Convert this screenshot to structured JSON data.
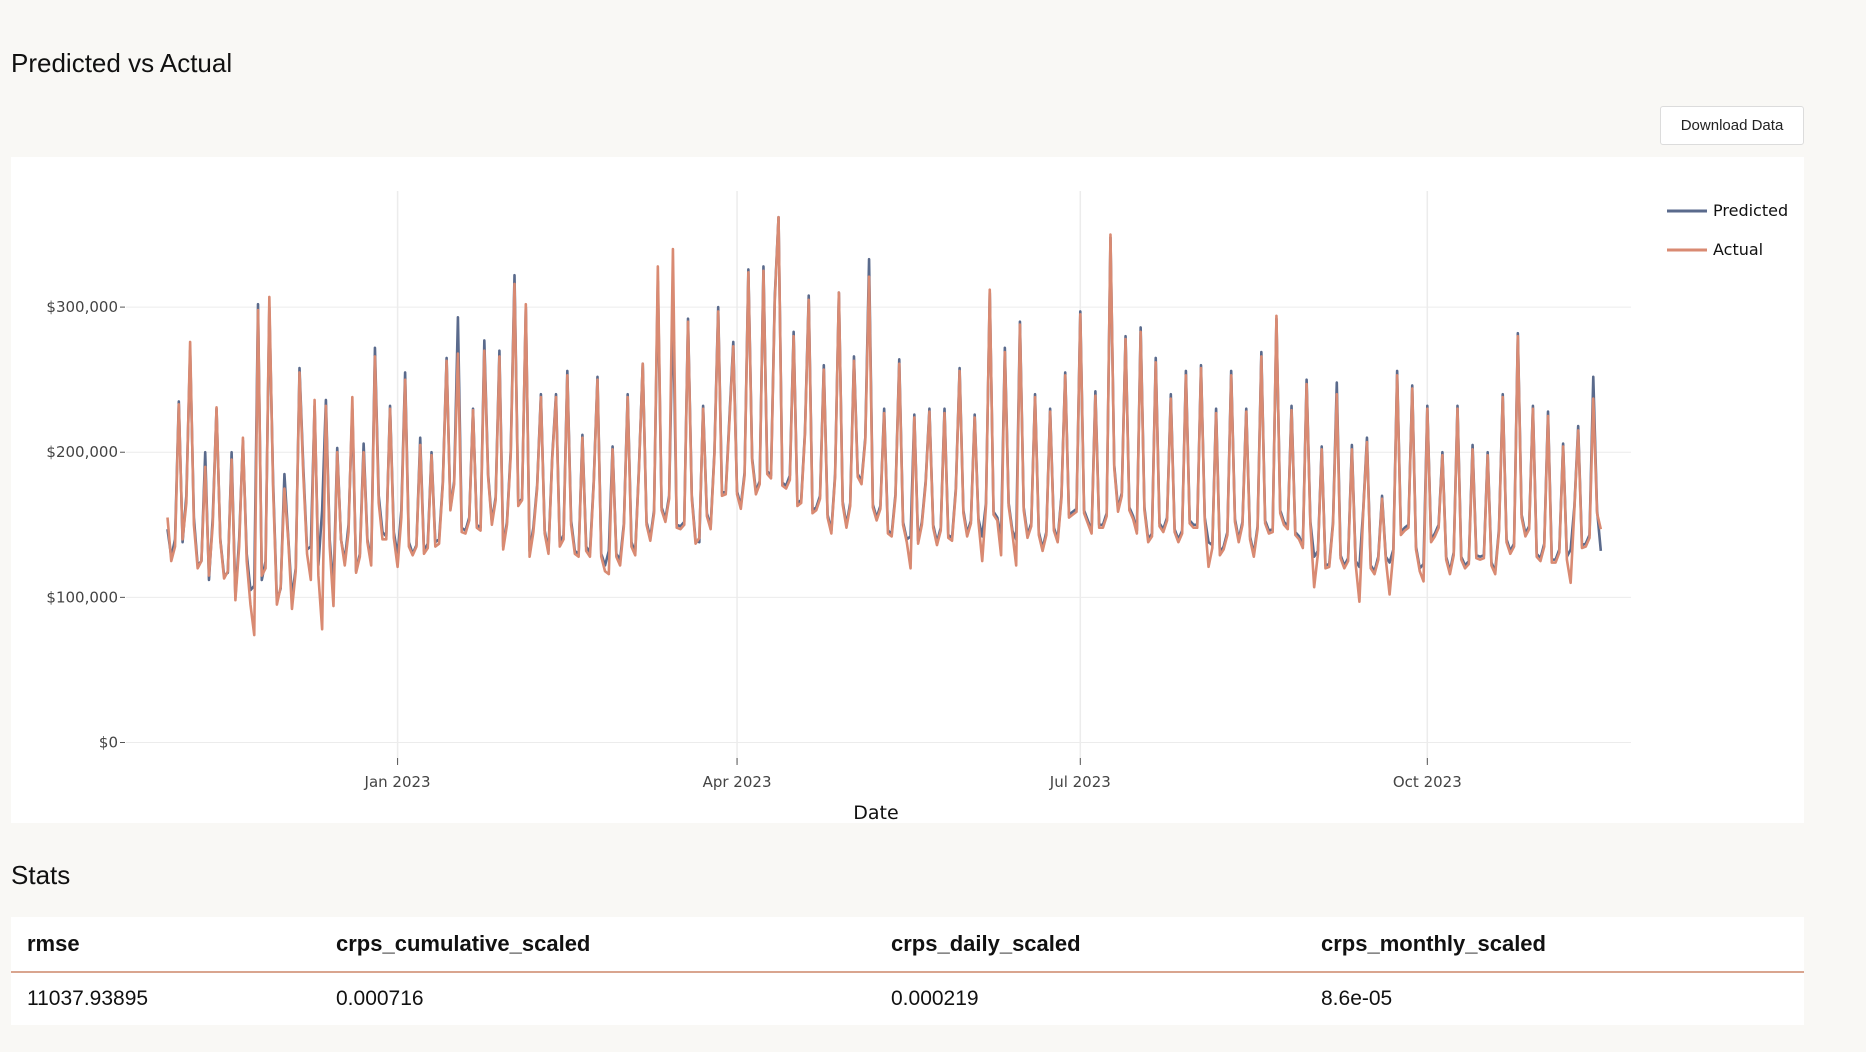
{
  "page": {
    "chart_title": "Predicted vs Actual",
    "download_label": "Download Data",
    "stats_title": "Stats"
  },
  "stats": {
    "columns": [
      "rmse",
      "crps_cumulative_scaled",
      "crps_daily_scaled",
      "crps_monthly_scaled"
    ],
    "values": [
      "11037.93895",
      "0.000716",
      "0.000219",
      "8.6e-05"
    ]
  },
  "colors": {
    "predicted": "#5a6a8c",
    "actual": "#d98a72",
    "grid": "#ececec"
  },
  "chart_data": {
    "type": "line",
    "title": "",
    "xlabel": "Date",
    "ylabel": "",
    "x_range": [
      "2022-11-01",
      "2023-10-31"
    ],
    "xlim": [
      "2022-10-21",
      "2023-11-24"
    ],
    "ylim": [
      -10000,
      380000
    ],
    "yticks": [
      0,
      100000,
      200000,
      300000
    ],
    "ytick_labels": [
      "$0",
      "$100,000",
      "$200,000",
      "$300,000"
    ],
    "xticks": [
      "2023-01-01",
      "2023-04-01",
      "2023-07-01",
      "2023-10-01"
    ],
    "xtick_labels": [
      "Jan 2023",
      "Apr 2023",
      "Jul 2023",
      "Oct 2023"
    ],
    "grid": true,
    "legend_position": "top-right",
    "series": [
      {
        "name": "Predicted",
        "values": [
          147000,
          128000,
          140000,
          235000,
          138000,
          170000,
          270000,
          155000,
          122000,
          125000,
          200000,
          112000,
          155000,
          230000,
          140000,
          115000,
          117000,
          200000,
          100000,
          140000,
          208000,
          130000,
          105000,
          108000,
          302000,
          112000,
          125000,
          300000,
          180000,
          98000,
          106000,
          185000,
          142000,
          100000,
          120000,
          258000,
          190000,
          133000,
          135000,
          232000,
          122000,
          160000,
          236000,
          140000,
          105000,
          203000,
          140000,
          125000,
          150000,
          230000,
          118000,
          130000,
          206000,
          140000,
          125000,
          272000,
          170000,
          145000,
          142000,
          232000,
          145000,
          129000,
          160000,
          255000,
          138000,
          130000,
          136000,
          210000,
          132000,
          137000,
          200000,
          138000,
          140000,
          180000,
          265000,
          161000,
          180000,
          293000,
          148000,
          146000,
          155000,
          230000,
          150000,
          148000,
          277000,
          185000,
          152000,
          169000,
          270000,
          135000,
          152000,
          201000,
          322000,
          165000,
          168000,
          300000,
          132000,
          148000,
          177000,
          240000,
          146000,
          132000,
          197000,
          240000,
          138000,
          143000,
          256000,
          153000,
          132000,
          130000,
          212000,
          135000,
          131000,
          180000,
          252000,
          130000,
          122000,
          132000,
          204000,
          130000,
          126000,
          151000,
          240000,
          138000,
          131000,
          190000,
          261000,
          152000,
          141000,
          160000,
          318000,
          162000,
          154000,
          170000,
          303000,
          150000,
          149000,
          152000,
          292000,
          170000,
          139000,
          138000,
          232000,
          158000,
          149000,
          200000,
          300000,
          172000,
          173000,
          225000,
          276000,
          173000,
          163000,
          186000,
          326000,
          196000,
          173000,
          180000,
          328000,
          187000,
          184000,
          307000,
          362000,
          179000,
          177000,
          184000,
          283000,
          165000,
          167000,
          214000,
          308000,
          160000,
          162000,
          170000,
          260000,
          157000,
          146000,
          185000,
          310000,
          166000,
          150000,
          165000,
          266000,
          185000,
          180000,
          210000,
          333000,
          164000,
          155000,
          163000,
          230000,
          146000,
          144000,
          171000,
          264000,
          152000,
          140000,
          142000,
          226000,
          139000,
          152000,
          180000,
          230000,
          150000,
          138000,
          148000,
          230000,
          143000,
          141000,
          175000,
          258000,
          160000,
          144000,
          153000,
          226000,
          154000,
          142000,
          165000,
          310000,
          159000,
          155000,
          141000,
          272000,
          165000,
          146000,
          140000,
          290000,
          162000,
          143000,
          151000,
          240000,
          145000,
          134000,
          145000,
          230000,
          148000,
          140000,
          170000,
          255000,
          157000,
          159000,
          161000,
          297000,
          160000,
          153000,
          146000,
          242000,
          150000,
          150000,
          158000,
          348000,
          191000,
          161000,
          172000,
          280000,
          162000,
          156000,
          146000,
          286000,
          162000,
          140000,
          144000,
          265000,
          151000,
          147000,
          155000,
          240000,
          147000,
          140000,
          146000,
          256000,
          153000,
          150000,
          150000,
          260000,
          155000,
          138000,
          136000,
          230000,
          131000,
          135000,
          145000,
          256000,
          154000,
          140000,
          152000,
          230000,
          142000,
          130000,
          149000,
          269000,
          153000,
          146000,
          147000,
          292000,
          160000,
          152000,
          149000,
          232000,
          145000,
          142000,
          136000,
          250000,
          152000,
          128000,
          132000,
          204000,
          122000,
          123000,
          152000,
          248000,
          129000,
          122000,
          127000,
          205000,
          125000,
          121000,
          160000,
          210000,
          122000,
          118000,
          128000,
          170000,
          128000,
          124000,
          133000,
          256000,
          145000,
          148000,
          150000,
          246000,
          135000,
          120000,
          123000,
          232000,
          140000,
          144000,
          150000,
          200000,
          128000,
          118000,
          131000,
          232000,
          128000,
          122000,
          125000,
          205000,
          129000,
          128000,
          129000,
          200000,
          124000,
          118000,
          147000,
          240000,
          140000,
          132000,
          137000,
          282000,
          157000,
          144000,
          149000,
          232000,
          130000,
          127000,
          137000,
          228000,
          126000,
          126000,
          133000,
          206000,
          128000,
          133000,
          163000,
          218000,
          136000,
          137000,
          143000,
          252000,
          160000,
          132000
        ]
      },
      {
        "name": "Actual",
        "values": [
          155000,
          125000,
          135000,
          233000,
          140000,
          165000,
          276000,
          150000,
          120000,
          125000,
          190000,
          115000,
          150000,
          231000,
          139000,
          113000,
          118000,
          195000,
          98000,
          135000,
          210000,
          125000,
          95000,
          74000,
          298000,
          115000,
          120000,
          307000,
          175000,
          95000,
          107000,
          175000,
          140000,
          92000,
          118000,
          255000,
          185000,
          130000,
          112000,
          236000,
          115000,
          78000,
          232000,
          135000,
          94000,
          200000,
          140000,
          122000,
          145000,
          238000,
          117000,
          128000,
          200000,
          138000,
          122000,
          266000,
          165000,
          140000,
          140000,
          230000,
          141000,
          121000,
          155000,
          250000,
          135000,
          129000,
          135000,
          205000,
          130000,
          134000,
          198000,
          135000,
          137000,
          178000,
          263000,
          160000,
          178000,
          268000,
          145000,
          144000,
          153000,
          229000,
          148000,
          146000,
          270000,
          183000,
          150000,
          167000,
          266000,
          133000,
          150000,
          198000,
          316000,
          163000,
          167000,
          302000,
          128000,
          145000,
          175000,
          238000,
          144000,
          130000,
          195000,
          238000,
          135000,
          140000,
          253000,
          150000,
          130000,
          128000,
          210000,
          132000,
          128000,
          178000,
          250000,
          128000,
          118000,
          116000,
          202000,
          128000,
          122000,
          149000,
          238000,
          135000,
          129000,
          188000,
          261000,
          150000,
          139000,
          158000,
          328000,
          160000,
          152000,
          168000,
          340000,
          148000,
          147000,
          150000,
          290000,
          168000,
          137000,
          141000,
          230000,
          156000,
          147000,
          198000,
          297000,
          170000,
          171000,
          222000,
          273000,
          171000,
          161000,
          184000,
          324000,
          194000,
          171000,
          178000,
          325000,
          185000,
          182000,
          304000,
          362000,
          177000,
          175000,
          181000,
          280000,
          163000,
          165000,
          212000,
          305000,
          158000,
          160000,
          168000,
          257000,
          155000,
          144000,
          183000,
          310000,
          164000,
          148000,
          163000,
          263000,
          183000,
          178000,
          208000,
          321000,
          162000,
          153000,
          161000,
          227000,
          144000,
          142000,
          169000,
          261000,
          150000,
          138000,
          120000,
          224000,
          137000,
          150000,
          178000,
          228000,
          148000,
          136000,
          146000,
          227000,
          141000,
          139000,
          173000,
          256000,
          158000,
          142000,
          151000,
          224000,
          152000,
          125000,
          163000,
          312000,
          157000,
          153000,
          129000,
          269000,
          163000,
          144000,
          122000,
          288000,
          160000,
          141000,
          149000,
          238000,
          143000,
          132000,
          143000,
          228000,
          146000,
          138000,
          168000,
          253000,
          155000,
          157000,
          159000,
          295000,
          158000,
          151000,
          144000,
          239000,
          148000,
          148000,
          156000,
          350000,
          189000,
          159000,
          170000,
          278000,
          160000,
          154000,
          144000,
          283000,
          160000,
          138000,
          142000,
          262000,
          149000,
          145000,
          153000,
          237000,
          145000,
          138000,
          144000,
          253000,
          151000,
          148000,
          148000,
          258000,
          153000,
          121000,
          134000,
          227000,
          129000,
          133000,
          143000,
          253000,
          152000,
          138000,
          150000,
          228000,
          140000,
          128000,
          147000,
          266000,
          151000,
          144000,
          145000,
          294000,
          158000,
          150000,
          147000,
          229000,
          143000,
          140000,
          134000,
          247000,
          150000,
          107000,
          130000,
          202000,
          120000,
          121000,
          150000,
          240000,
          127000,
          120000,
          125000,
          202000,
          123000,
          97000,
          158000,
          207000,
          120000,
          116000,
          126000,
          168000,
          126000,
          102000,
          131000,
          253000,
          143000,
          146000,
          148000,
          244000,
          133000,
          118000,
          111000,
          230000,
          138000,
          142000,
          148000,
          198000,
          126000,
          116000,
          129000,
          230000,
          126000,
          120000,
          123000,
          202000,
          127000,
          126000,
          127000,
          198000,
          122000,
          116000,
          145000,
          238000,
          138000,
          130000,
          135000,
          280000,
          155000,
          142000,
          147000,
          230000,
          128000,
          125000,
          135000,
          225000,
          124000,
          124000,
          131000,
          204000,
          126000,
          110000,
          161000,
          215000,
          134000,
          135000,
          141000,
          237000,
          158000,
          147000
        ]
      }
    ]
  }
}
